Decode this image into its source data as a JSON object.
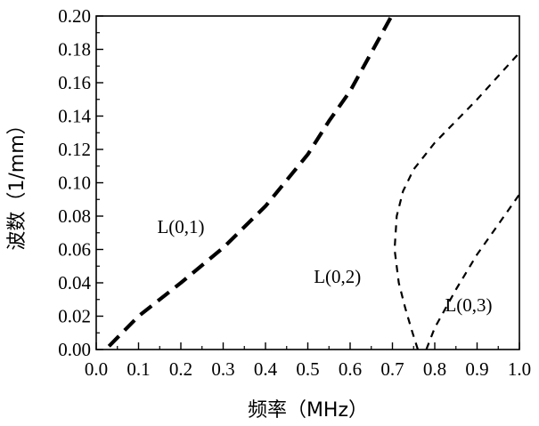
{
  "chart_data": {
    "type": "line",
    "title": "",
    "xlabel": "频率（MHz）",
    "ylabel": "波数（1/mm）",
    "xlim": [
      0.0,
      1.0
    ],
    "ylim": [
      0.0,
      0.2
    ],
    "x_ticks": [
      "0.0",
      "0.1",
      "0.2",
      "0.3",
      "0.4",
      "0.5",
      "0.6",
      "0.7",
      "0.8",
      "0.9",
      "1.0"
    ],
    "y_ticks": [
      "0.00",
      "0.02",
      "0.04",
      "0.06",
      "0.08",
      "0.10",
      "0.12",
      "0.14",
      "0.16",
      "0.18",
      "0.20"
    ],
    "grid": false,
    "series": [
      {
        "name": "L(0,1)",
        "style": "long-dash-thick",
        "x": [
          0.03,
          0.1,
          0.2,
          0.3,
          0.4,
          0.5,
          0.55,
          0.6,
          0.65,
          0.7
        ],
        "y": [
          0.002,
          0.02,
          0.04,
          0.061,
          0.086,
          0.117,
          0.137,
          0.155,
          0.178,
          0.201
        ]
      },
      {
        "name": "L(0,2)",
        "style": "short-dash",
        "x": [
          0.76,
          0.745,
          0.73,
          0.715,
          0.705,
          0.71,
          0.725,
          0.75,
          0.8,
          0.85,
          0.9,
          0.95,
          1.0
        ],
        "y": [
          0.0,
          0.012,
          0.025,
          0.04,
          0.06,
          0.08,
          0.095,
          0.108,
          0.124,
          0.137,
          0.15,
          0.164,
          0.178
        ]
      },
      {
        "name": "L(0,3)",
        "style": "short-dash",
        "x": [
          0.78,
          0.8,
          0.85,
          0.9,
          0.95,
          1.0
        ],
        "y": [
          0.0,
          0.013,
          0.036,
          0.057,
          0.075,
          0.093
        ]
      }
    ],
    "annotations": [
      {
        "text": "L(0,1)",
        "x": 0.2,
        "y": 0.07
      },
      {
        "text": "L(0,2)",
        "x": 0.57,
        "y": 0.04
      },
      {
        "text": "L(0,3)",
        "x": 0.88,
        "y": 0.023
      }
    ]
  }
}
